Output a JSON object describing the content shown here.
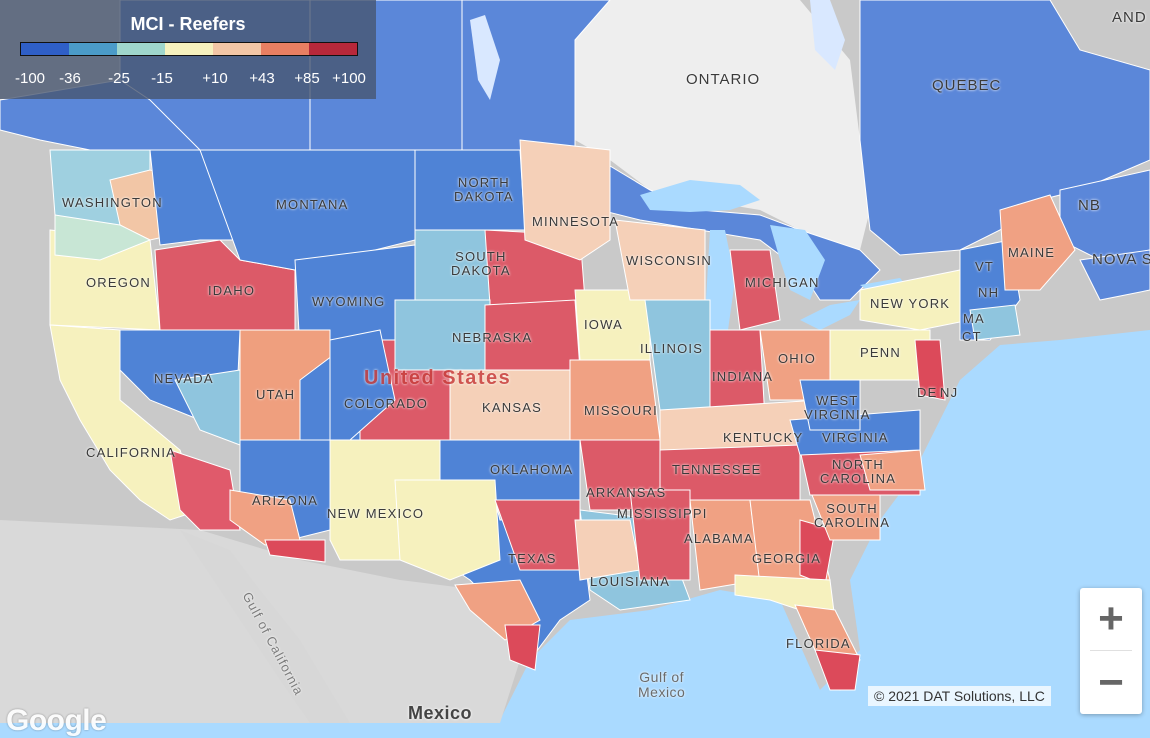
{
  "legend": {
    "title": "MCI - Reefers",
    "colors": [
      "#2f5fc7",
      "#4b9bc8",
      "#9fd6cc",
      "#f6f1be",
      "#f2c6a6",
      "#e87f62",
      "#b7283a"
    ],
    "ticks": [
      "-100",
      "-36",
      "-25",
      "-15",
      "+10",
      "+43",
      "+85",
      "+100"
    ]
  },
  "labels": {
    "ontario": "ONTARIO",
    "quebec": "QUEBEC",
    "new_brunswick": "NB",
    "nova_scotia": "NOVA SC",
    "newfoundland": "AND",
    "washington": "WASHINGTON",
    "oregon": "OREGON",
    "california": "CALIFORNIA",
    "nevada": "NEVADA",
    "idaho": "IDAHO",
    "montana": "MONTANA",
    "wyoming": "WYOMING",
    "utah": "UTAH",
    "arizona": "ARIZONA",
    "colorado": "COLORADO",
    "new_mexico": "NEW MEXICO",
    "north_dakota_1": "NORTH",
    "north_dakota_2": "DAKOTA",
    "south_dakota_1": "SOUTH",
    "south_dakota_2": "DAKOTA",
    "nebraska": "NEBRASKA",
    "kansas": "KANSAS",
    "oklahoma": "OKLAHOMA",
    "texas": "TEXAS",
    "minnesota": "MINNESOTA",
    "iowa": "IOWA",
    "missouri": "MISSOURI",
    "arkansas": "ARKANSAS",
    "louisiana": "LOUISIANA",
    "wisconsin": "WISCONSIN",
    "illinois": "ILLINOIS",
    "michigan": "MICHIGAN",
    "indiana": "INDIANA",
    "ohio": "OHIO",
    "kentucky": "KENTUCKY",
    "tennessee": "TENNESSEE",
    "mississippi": "MISSISSIPPI",
    "alabama": "ALABAMA",
    "georgia": "GEORGIA",
    "florida": "FLORIDA",
    "south_carolina_1": "SOUTH",
    "south_carolina_2": "CAROLINA",
    "north_carolina_1": "NORTH",
    "north_carolina_2": "CAROLINA",
    "virginia": "VIRGINIA",
    "west_virginia_1": "WEST",
    "west_virginia_2": "VIRGINIA",
    "pennsylvania": "PENN",
    "new_york": "NEW YORK",
    "new_jersey": "NJ",
    "delaware": "DE",
    "maine": "MAINE",
    "vermont": "VT",
    "new_hampshire": "NH",
    "massachusetts": "MA",
    "connecticut": "CT",
    "united_states": "United States",
    "mexico": "Mexico",
    "gulf_of_mexico_1": "Gulf of",
    "gulf_of_mexico_2": "Mexico",
    "gulf_of_california": "Gulf of California"
  },
  "zoom": {
    "in_label": "+",
    "out_label": "−"
  },
  "copyright": "© 2021 DAT Solutions, LLC",
  "provider": "Google"
}
